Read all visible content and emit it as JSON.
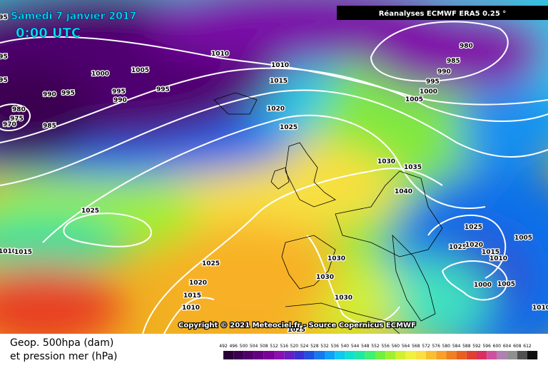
{
  "header": {
    "date": "Samedi 7 janvier 2017",
    "time": "0:00 UTC",
    "source": "Réanalyses ECMWF ERA5 0.25 °"
  },
  "copyright": "Copyright © 2021 Meteociel.fr - Source Copernicus ECMWF",
  "legend": {
    "line1": "Geop. 500hpa (dam)",
    "line2": "et pression mer (hPa)",
    "ticks": [
      492,
      496,
      500,
      504,
      508,
      512,
      516,
      520,
      524,
      528,
      532,
      536,
      540,
      544,
      548,
      552,
      556,
      560,
      564,
      568,
      572,
      576,
      580,
      584,
      588,
      592,
      596,
      600,
      604,
      608,
      612
    ],
    "colors": [
      "#2a0038",
      "#3c0050",
      "#500068",
      "#640080",
      "#7a0098",
      "#8c10b0",
      "#6a1ec0",
      "#3c30d0",
      "#2050e0",
      "#1878f0",
      "#10a0f8",
      "#10c8f0",
      "#10e0d0",
      "#20e8a0",
      "#40f070",
      "#70f040",
      "#a0f030",
      "#d0f030",
      "#f0f040",
      "#f8e040",
      "#f8c030",
      "#f8a028",
      "#f08020",
      "#e86020",
      "#e04030",
      "#d83060",
      "#d050a0",
      "#b080b0",
      "#909090",
      "#505050",
      "#101010"
    ]
  },
  "isobars": [
    995,
    995,
    995,
    1010,
    1000,
    1005,
    995,
    990,
    995,
    990,
    995,
    980,
    975,
    970,
    985,
    1010,
    1015,
    1020,
    1025,
    980,
    985,
    990,
    995,
    1000,
    1005,
    1030,
    1035,
    1040,
    1025,
    1025,
    1025,
    1020,
    1015,
    1010,
    1005,
    1000,
    1005,
    1025,
    1020,
    1015,
    1010,
    1030,
    1030,
    1030,
    1025,
    1010,
    1015,
    1010
  ]
}
